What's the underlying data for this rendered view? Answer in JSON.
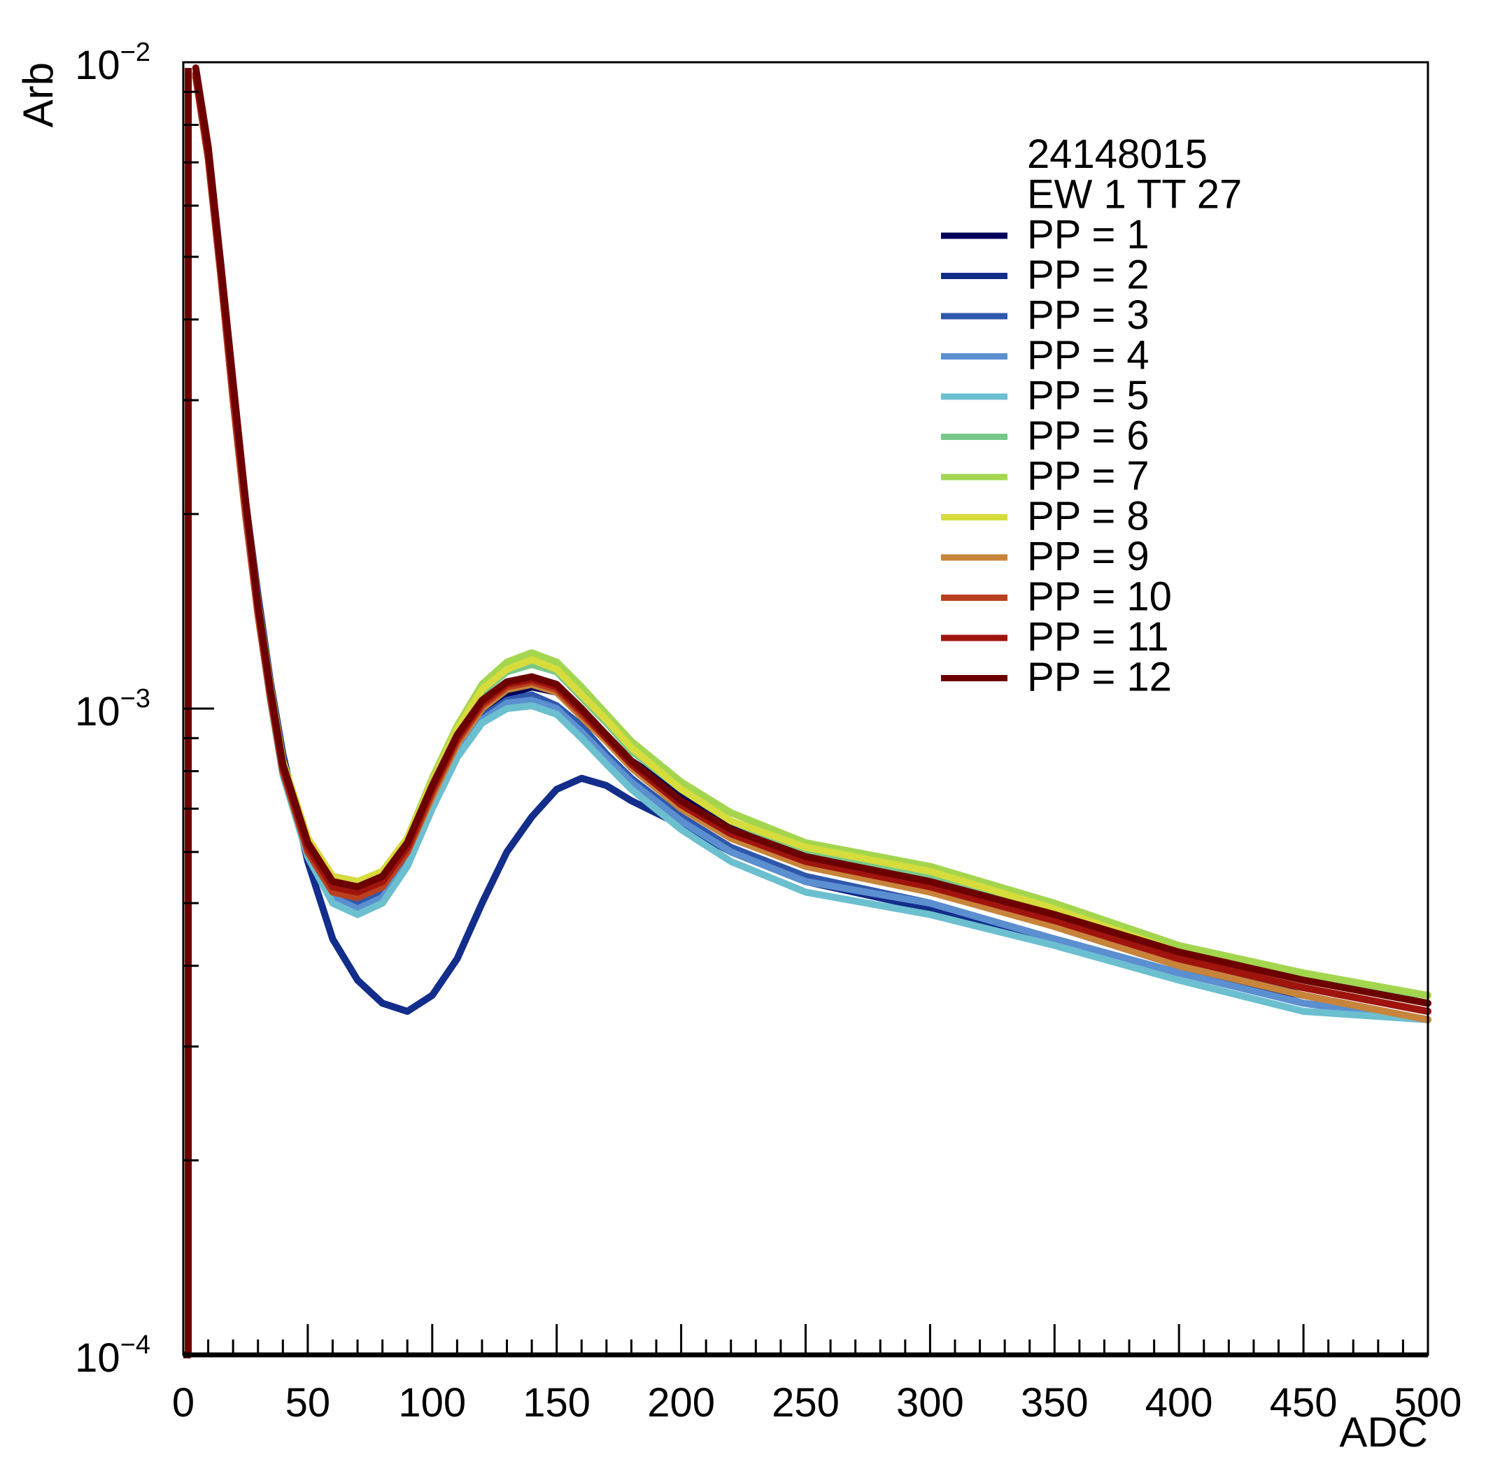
{
  "chart_data": {
    "type": "line",
    "xlabel": "ADC",
    "ylabel": "Arb",
    "xlim": [
      0,
      500
    ],
    "ylim": [
      0.0001,
      0.01
    ],
    "yscale": "log",
    "x_ticks": [
      "0",
      "50",
      "100",
      "150",
      "200",
      "250",
      "300",
      "350",
      "400",
      "450",
      "500"
    ],
    "y_ticks": [
      {
        "value": 0.01,
        "mantissa": "10",
        "exponent": "−2"
      },
      {
        "value": 0.001,
        "mantissa": "10",
        "exponent": "−3"
      },
      {
        "value": 0.0001,
        "mantissa": "10",
        "exponent": "−4"
      }
    ],
    "legend": {
      "placement": "top-right",
      "header": [
        "24148015",
        "EW 1 TT 27"
      ]
    },
    "x": [
      5,
      10,
      15,
      20,
      25,
      30,
      35,
      40,
      50,
      60,
      70,
      80,
      90,
      100,
      110,
      120,
      130,
      140,
      150,
      160,
      170,
      180,
      200,
      220,
      250,
      300,
      350,
      400,
      450,
      500
    ],
    "series": [
      {
        "name": "PP = 1",
        "color": "#00005a",
        "values": [
          0.0095,
          0.0072,
          0.0048,
          0.0031,
          0.0021,
          0.00145,
          0.00108,
          0.00083,
          0.00062,
          0.00055,
          0.00054,
          0.00055,
          0.00062,
          0.00075,
          0.00088,
          0.00098,
          0.00105,
          0.00108,
          0.00106,
          0.00098,
          0.00091,
          0.00083,
          0.00074,
          0.00066,
          0.00059,
          0.00053,
          0.00046,
          0.0004,
          0.00037,
          0.00034
        ]
      },
      {
        "name": "PP = 2",
        "color": "#132d8a",
        "values": [
          0.0095,
          0.0072,
          0.0048,
          0.0031,
          0.0021,
          0.0015,
          0.0011,
          0.00085,
          0.00058,
          0.00044,
          0.00038,
          0.00035,
          0.00034,
          0.00036,
          0.00041,
          0.0005,
          0.0006,
          0.00068,
          0.00075,
          0.00078,
          0.00076,
          0.00072,
          0.00066,
          0.0006,
          0.00054,
          0.00049,
          0.00044,
          0.00039,
          0.00036,
          0.00033
        ]
      },
      {
        "name": "PP = 3",
        "color": "#2f58ad",
        "values": [
          0.0095,
          0.0072,
          0.0048,
          0.0031,
          0.0021,
          0.00143,
          0.00105,
          0.0008,
          0.0006,
          0.00052,
          0.0005,
          0.00052,
          0.00059,
          0.00072,
          0.00086,
          0.00097,
          0.00103,
          0.00105,
          0.00101,
          0.00094,
          0.00085,
          0.00078,
          0.00068,
          0.00061,
          0.00055,
          0.0005,
          0.00044,
          0.00039,
          0.00035,
          0.00033
        ]
      },
      {
        "name": "PP = 4",
        "color": "#5b8fd0",
        "values": [
          0.0095,
          0.0071,
          0.0047,
          0.003,
          0.0021,
          0.00142,
          0.00104,
          0.0008,
          0.0006,
          0.00051,
          0.00049,
          0.00051,
          0.00058,
          0.00071,
          0.00085,
          0.00096,
          0.00102,
          0.00103,
          0.001,
          0.00092,
          0.00084,
          0.00077,
          0.00067,
          0.0006,
          0.00054,
          0.0005,
          0.00044,
          0.00039,
          0.00035,
          0.00033
        ]
      },
      {
        "name": "PP = 5",
        "color": "#6cbfcf",
        "values": [
          0.0095,
          0.0071,
          0.0047,
          0.003,
          0.002,
          0.0014,
          0.00103,
          0.00079,
          0.00059,
          0.0005,
          0.00048,
          0.0005,
          0.00057,
          0.0007,
          0.00084,
          0.00095,
          0.001,
          0.00101,
          0.00098,
          0.0009,
          0.00082,
          0.00075,
          0.00065,
          0.00058,
          0.00052,
          0.00048,
          0.00043,
          0.00038,
          0.00034,
          0.00033
        ]
      },
      {
        "name": "PP = 6",
        "color": "#78c88a",
        "values": [
          0.0095,
          0.0072,
          0.0048,
          0.0031,
          0.0021,
          0.00145,
          0.00107,
          0.00082,
          0.00062,
          0.00054,
          0.00053,
          0.00055,
          0.00062,
          0.00077,
          0.00092,
          0.00106,
          0.00114,
          0.00117,
          0.00114,
          0.00104,
          0.00095,
          0.00086,
          0.00075,
          0.00067,
          0.0006,
          0.00055,
          0.00048,
          0.00042,
          0.00038,
          0.00036
        ]
      },
      {
        "name": "PP = 7",
        "color": "#a3d64e",
        "values": [
          0.0095,
          0.0072,
          0.0048,
          0.0031,
          0.0021,
          0.00146,
          0.00108,
          0.00083,
          0.00063,
          0.00055,
          0.00054,
          0.00056,
          0.00063,
          0.00078,
          0.00094,
          0.00109,
          0.00118,
          0.00122,
          0.00118,
          0.00108,
          0.00098,
          0.00089,
          0.00077,
          0.00069,
          0.00062,
          0.00057,
          0.0005,
          0.00043,
          0.00039,
          0.00036
        ]
      },
      {
        "name": "PP = 8",
        "color": "#d6dc3c",
        "values": [
          0.0095,
          0.0072,
          0.0048,
          0.0031,
          0.0021,
          0.00146,
          0.00108,
          0.00083,
          0.00063,
          0.00055,
          0.00054,
          0.00056,
          0.00063,
          0.00077,
          0.00093,
          0.00107,
          0.00115,
          0.00119,
          0.00115,
          0.00105,
          0.00096,
          0.00087,
          0.00075,
          0.00067,
          0.00061,
          0.00056,
          0.00049,
          0.00042,
          0.00038,
          0.00035
        ]
      },
      {
        "name": "PP = 9",
        "color": "#c7843a",
        "values": [
          0.0095,
          0.0071,
          0.0047,
          0.003,
          0.002,
          0.0014,
          0.00104,
          0.0008,
          0.0006,
          0.00052,
          0.00051,
          0.00053,
          0.0006,
          0.00073,
          0.00088,
          0.001,
          0.00107,
          0.00109,
          0.00106,
          0.00097,
          0.00089,
          0.00081,
          0.0007,
          0.00063,
          0.00057,
          0.00052,
          0.00046,
          0.0004,
          0.00036,
          0.00033
        ]
      },
      {
        "name": "PP = 10",
        "color": "#b9401e",
        "values": [
          0.0095,
          0.0071,
          0.0047,
          0.003,
          0.002,
          0.0014,
          0.00104,
          0.0008,
          0.0006,
          0.00052,
          0.00051,
          0.00053,
          0.0006,
          0.00074,
          0.00089,
          0.00101,
          0.00108,
          0.0011,
          0.00107,
          0.00098,
          0.0009,
          0.00082,
          0.00071,
          0.00064,
          0.00058,
          0.00053,
          0.00047,
          0.00041,
          0.00037,
          0.00034
        ]
      },
      {
        "name": "PP = 11",
        "color": "#a0140e",
        "values": [
          0.0096,
          0.0072,
          0.0048,
          0.0031,
          0.0021,
          0.00144,
          0.00106,
          0.00081,
          0.00061,
          0.00053,
          0.00052,
          0.00054,
          0.00061,
          0.00075,
          0.0009,
          0.00102,
          0.00109,
          0.00111,
          0.00108,
          0.00099,
          0.0009,
          0.00082,
          0.00071,
          0.00064,
          0.00058,
          0.00053,
          0.00047,
          0.00041,
          0.00037,
          0.00034
        ]
      },
      {
        "name": "PP = 12",
        "color": "#6c0000",
        "values": [
          0.0098,
          0.0074,
          0.0049,
          0.0032,
          0.0021,
          0.00145,
          0.00107,
          0.00082,
          0.00062,
          0.00054,
          0.00053,
          0.00055,
          0.00062,
          0.00076,
          0.00091,
          0.00103,
          0.0011,
          0.00112,
          0.00109,
          0.001,
          0.00091,
          0.00083,
          0.00072,
          0.00065,
          0.00059,
          0.00054,
          0.00048,
          0.00042,
          0.00038,
          0.00035
        ]
      }
    ]
  }
}
